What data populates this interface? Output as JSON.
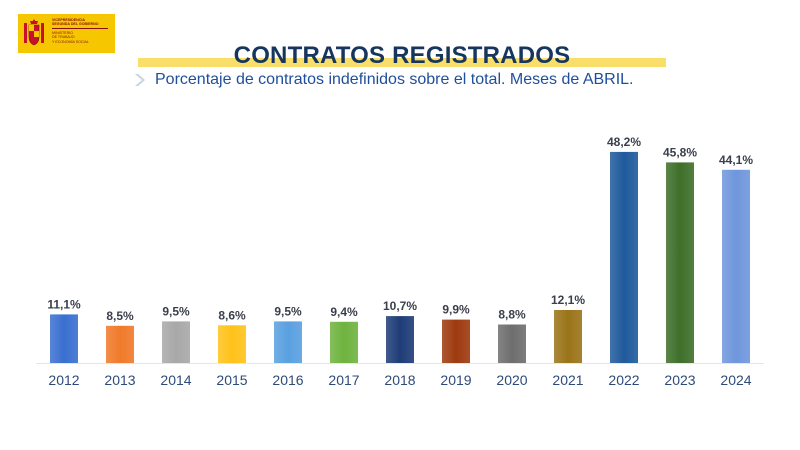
{
  "logo": {
    "line1": "VICEPRESIDENCIA",
    "line2": "SEGUNDA DEL GOBIERNO",
    "line3": "MINISTERIO",
    "line4": "DE TRABAJO",
    "line5": "Y ECONOMÍA SOCIAL"
  },
  "header": {
    "title": "CONTRATOS REGISTRADOS",
    "subtitle": "Porcentaje de contratos indefinidos sobre el total. Meses de ABRIL."
  },
  "chart_data": {
    "type": "bar",
    "categories": [
      "2012",
      "2013",
      "2014",
      "2015",
      "2016",
      "2017",
      "2018",
      "2019",
      "2020",
      "2021",
      "2022",
      "2023",
      "2024"
    ],
    "values": [
      11.1,
      8.5,
      9.5,
      8.6,
      9.5,
      9.4,
      10.7,
      9.9,
      8.8,
      12.1,
      48.2,
      45.8,
      44.1
    ],
    "labels": [
      "11,1%",
      "8,5%",
      "9,5%",
      "8,6%",
      "9,5%",
      "9,4%",
      "10,7%",
      "9,9%",
      "8,8%",
      "12,1%",
      "48,2%",
      "45,8%",
      "44,1%"
    ],
    "colors": [
      "#3a6fd0",
      "#f07a2a",
      "#a8a8a8",
      "#ffc21a",
      "#5aa0e0",
      "#6fb33f",
      "#1f3c78",
      "#9e3a10",
      "#6e6e6e",
      "#9a7418",
      "#1f5a9c",
      "#3f6f2a",
      "#6f96dc"
    ],
    "ylim": [
      0,
      50
    ],
    "grid": false,
    "legend": "none"
  }
}
